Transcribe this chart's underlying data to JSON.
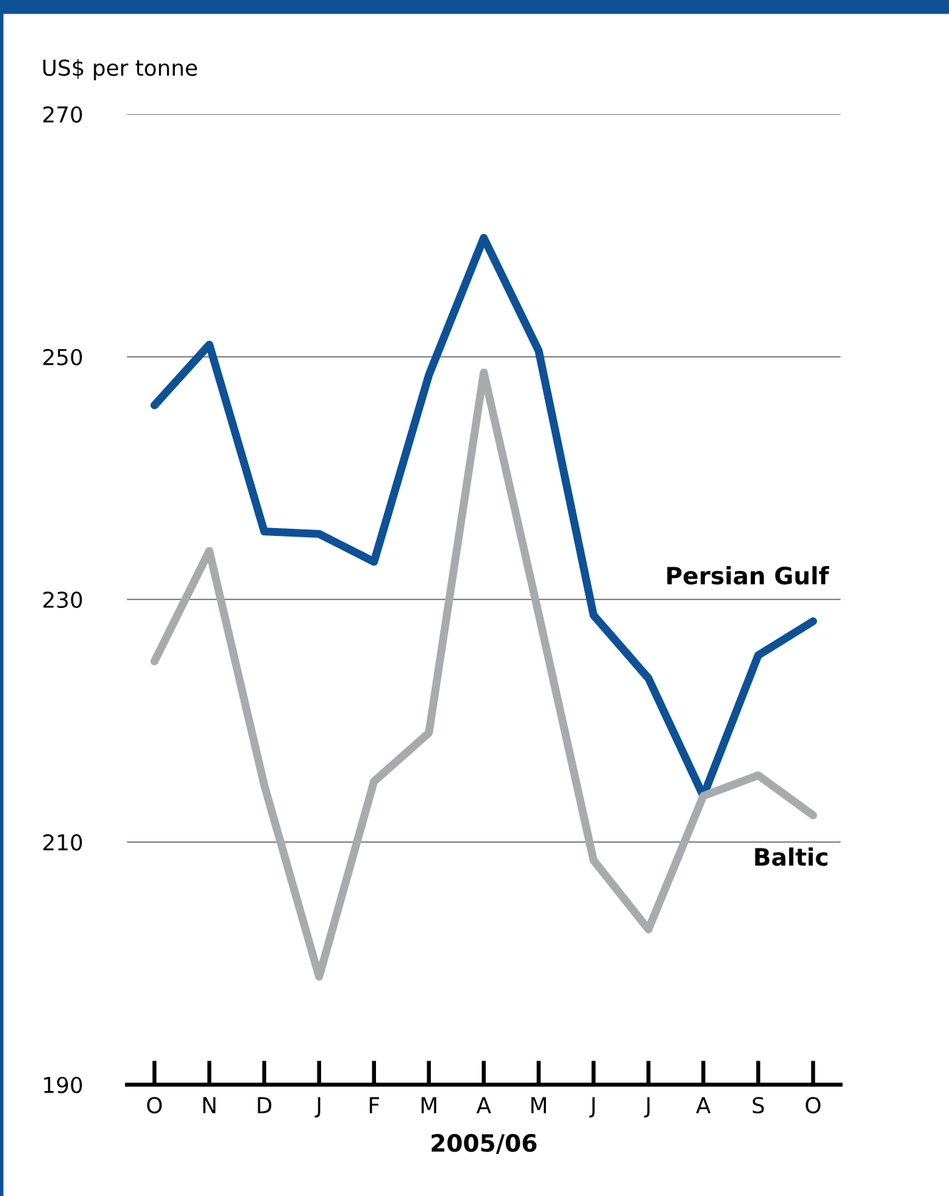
{
  "chart_data": {
    "type": "line",
    "ylabel": "US$ per tonne",
    "xlabel": "2005/06",
    "categories": [
      "O",
      "N",
      "D",
      "J",
      "F",
      "M",
      "A",
      "M",
      "J",
      "J",
      "A",
      "S",
      "O"
    ],
    "series": [
      {
        "name": "Persian Gulf",
        "color": "#0d5196",
        "values": [
          246,
          251,
          235.6,
          235.4,
          233.1,
          248.5,
          259.8,
          250.5,
          228.7,
          223.5,
          213.8,
          225.4,
          228.2
        ]
      },
      {
        "name": "Baltic",
        "color": "#a9aaad",
        "values": [
          224.9,
          234,
          214.7,
          198.9,
          215,
          219,
          248.7,
          228.8,
          208.5,
          202.8,
          213.8,
          215.5,
          212.2
        ]
      }
    ],
    "ylim": [
      190,
      270
    ],
    "yticks": [
      190,
      210,
      230,
      250,
      270
    ],
    "grid": "y",
    "legend": false,
    "marker": "none",
    "line_style": "solid"
  }
}
